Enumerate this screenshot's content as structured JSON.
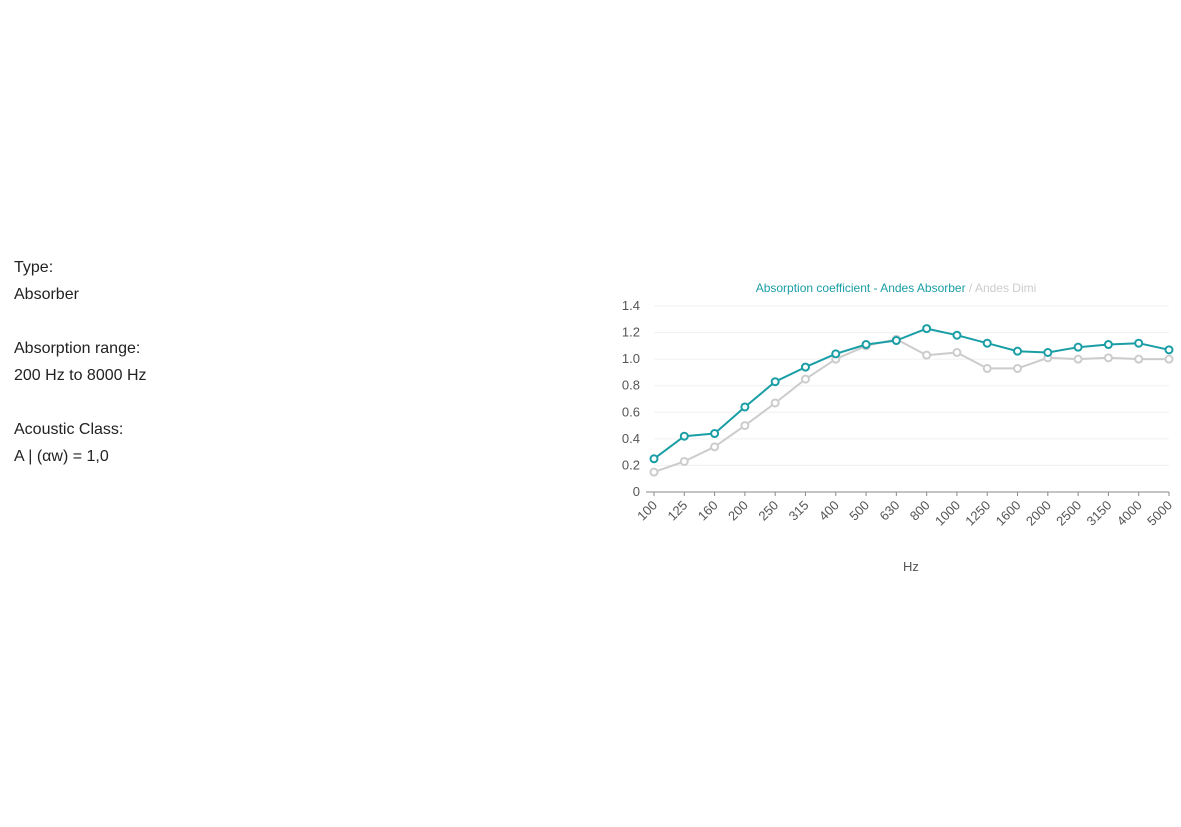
{
  "specs": {
    "type_label": "Type:",
    "type_value": "Absorber",
    "range_label": "Absorption range:",
    "range_value": "200 Hz to 8000 Hz",
    "class_label": "Acoustic Class:",
    "class_value": "A | (αw) = 1,0"
  },
  "chart_data": {
    "type": "line",
    "title_primary": "Absorption coefficient - Andes Absorber",
    "title_separator": " / ",
    "title_secondary": "Andes Dimi",
    "xlabel": "Hz",
    "ylabel": "",
    "categories": [
      "100",
      "125",
      "160",
      "200",
      "250",
      "315",
      "400",
      "500",
      "630",
      "800",
      "1000",
      "1250",
      "1600",
      "2000",
      "2500",
      "3150",
      "4000",
      "5000"
    ],
    "ylim": [
      0,
      1.4
    ],
    "yticks": [
      "0",
      "0.2",
      "0.4",
      "0.6",
      "0.8",
      "1.0",
      "1.2",
      "1.4"
    ],
    "grid": true,
    "series": [
      {
        "name": "Andes Dimi",
        "color": "#cccccc",
        "values": [
          0.15,
          0.23,
          0.34,
          0.5,
          0.67,
          0.85,
          1.0,
          1.1,
          1.15,
          1.03,
          1.05,
          0.93,
          0.93,
          1.01,
          1.0,
          1.01,
          1.0,
          1.0
        ]
      },
      {
        "name": "Andes Absorber",
        "color": "#1a9ea6",
        "values": [
          0.25,
          0.42,
          0.44,
          0.64,
          0.83,
          0.94,
          1.04,
          1.11,
          1.14,
          1.23,
          1.18,
          1.12,
          1.06,
          1.05,
          1.09,
          1.11,
          1.12,
          1.07
        ]
      }
    ]
  }
}
